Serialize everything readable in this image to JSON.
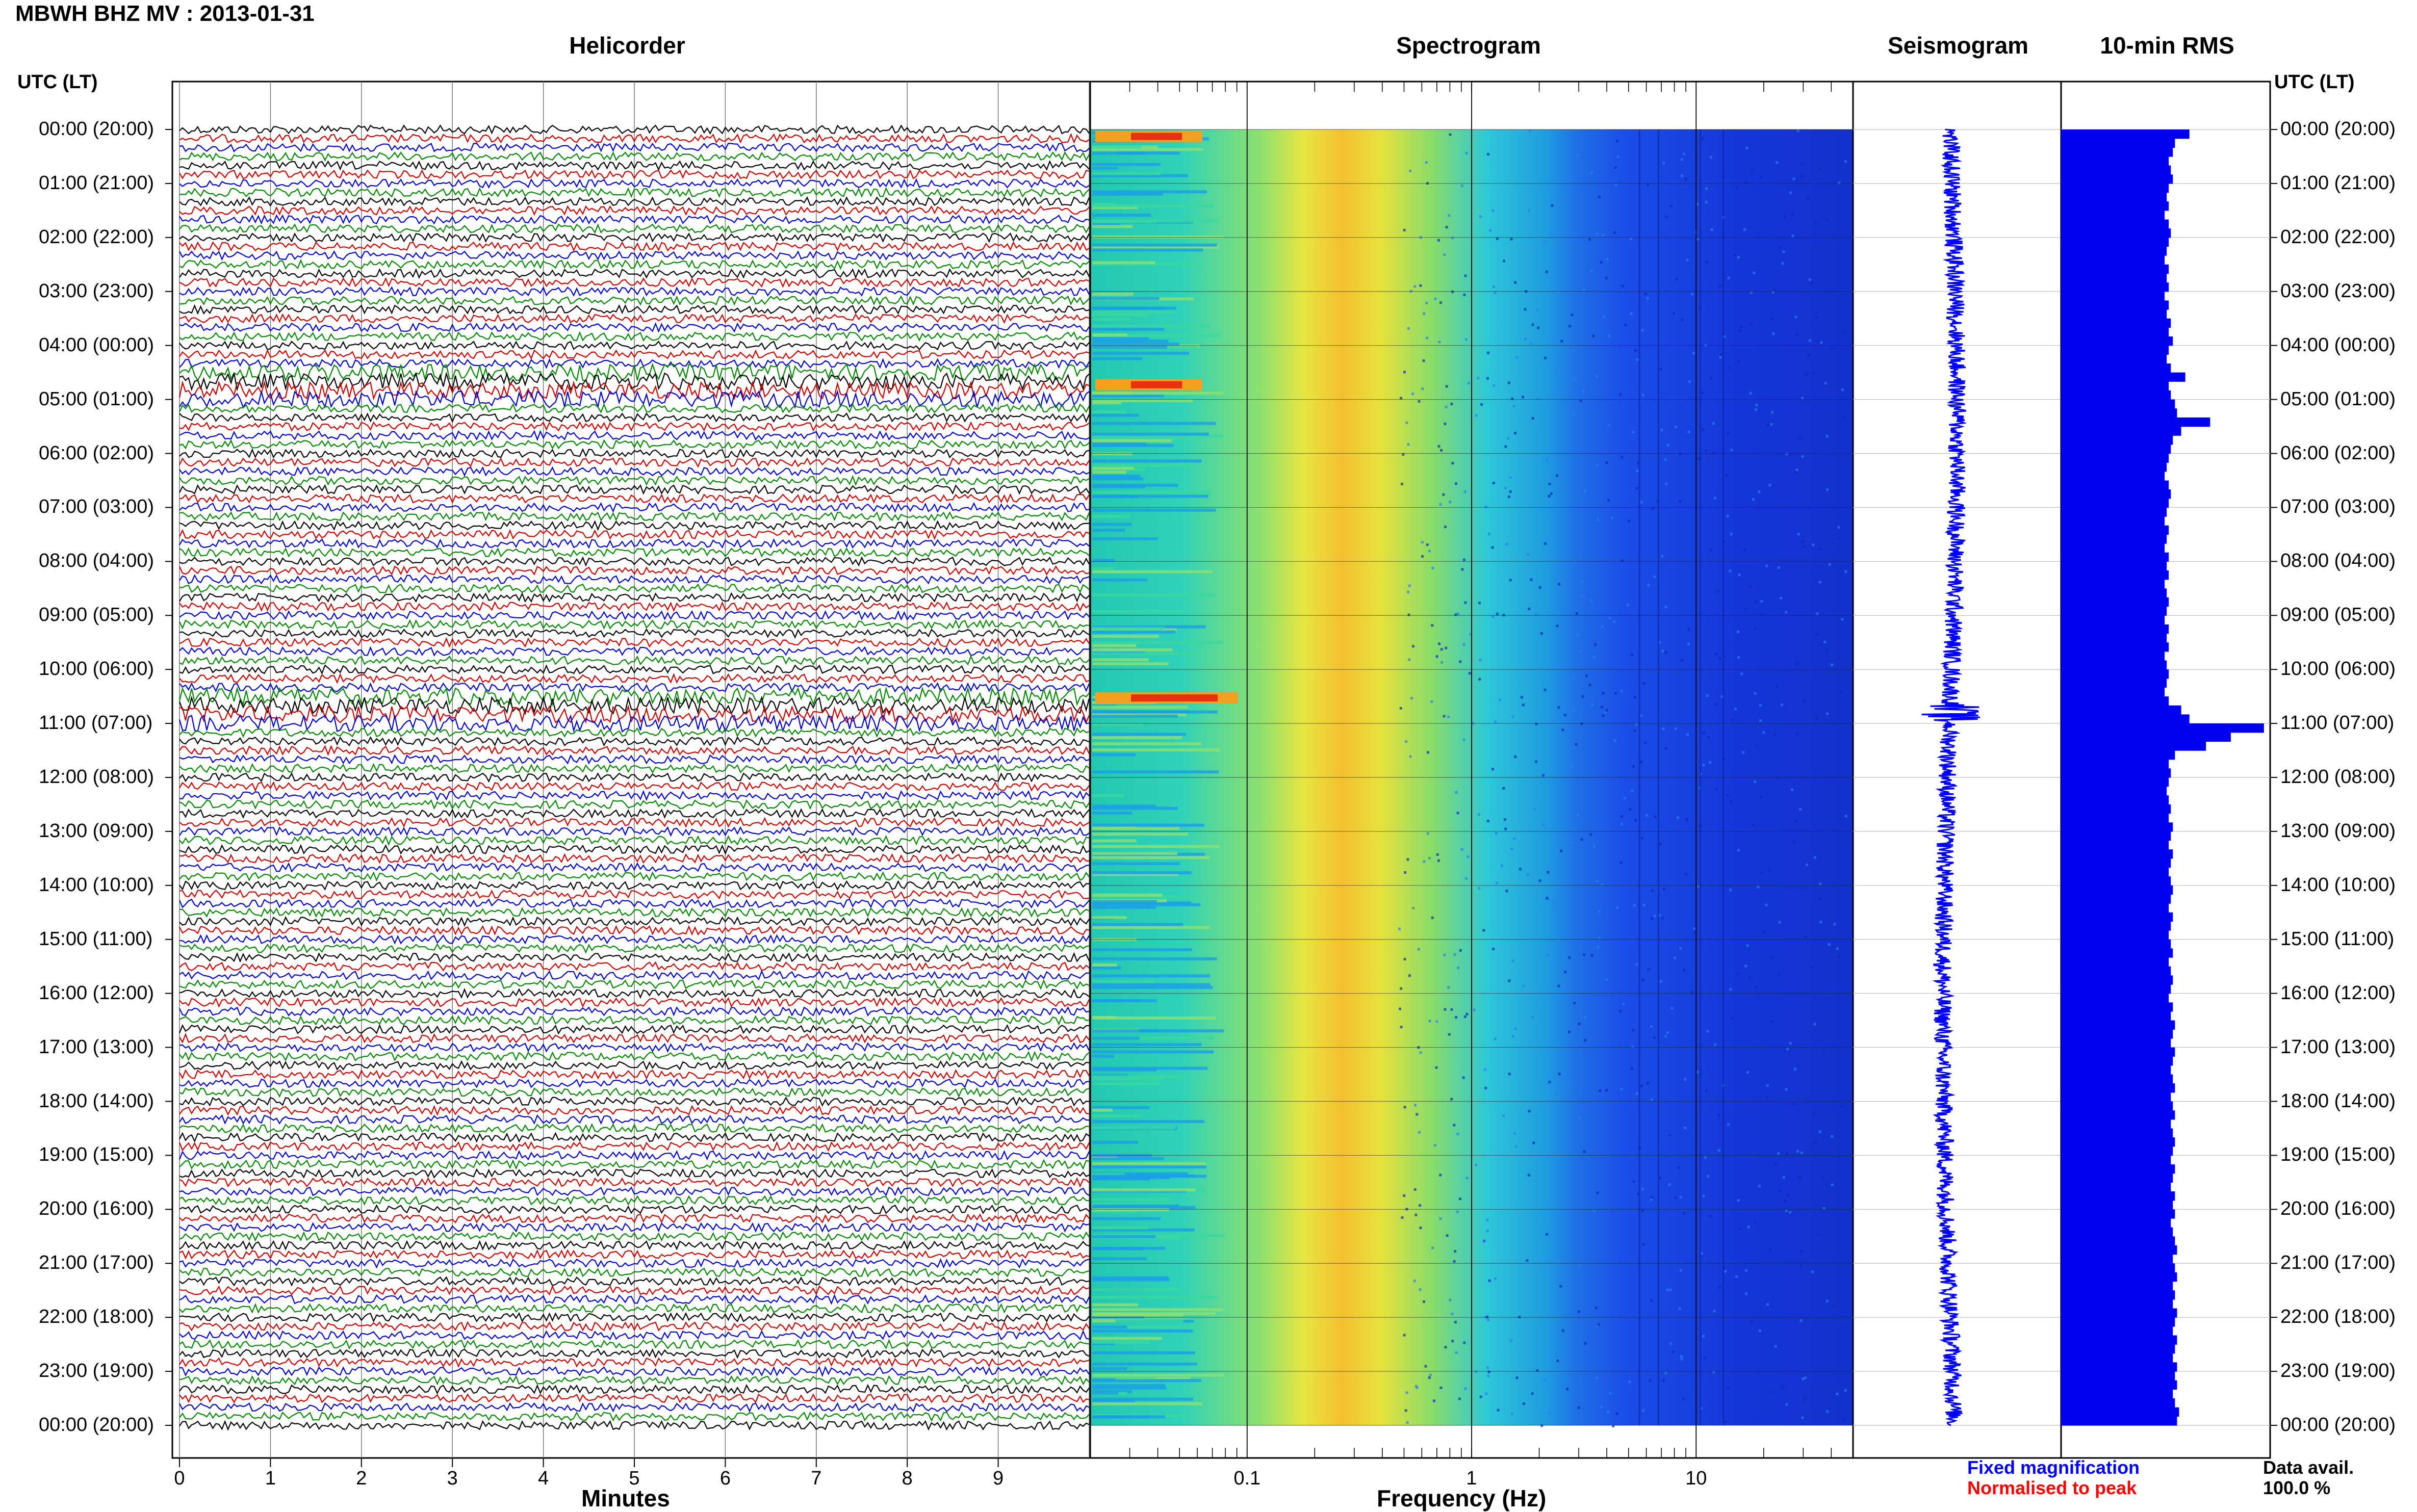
{
  "header": {
    "station": "MBWH BHZ MV : 2013-01-31"
  },
  "panels": {
    "helicorder": "Helicorder",
    "spectrogram": "Spectrogram",
    "seismogram": "Seismogram",
    "rms": "10-min RMS"
  },
  "axis_head": {
    "left": "UTC (LT)",
    "right": "UTC (LT)"
  },
  "time_labels": [
    "00:00 (20:00)",
    "01:00 (21:00)",
    "02:00 (22:00)",
    "03:00 (23:00)",
    "04:00 (00:00)",
    "05:00 (01:00)",
    "06:00 (02:00)",
    "07:00 (03:00)",
    "08:00 (04:00)",
    "09:00 (05:00)",
    "10:00 (06:00)",
    "11:00 (07:00)",
    "12:00 (08:00)",
    "13:00 (09:00)",
    "14:00 (10:00)",
    "15:00 (11:00)",
    "16:00 (12:00)",
    "17:00 (13:00)",
    "18:00 (14:00)",
    "19:00 (15:00)",
    "20:00 (16:00)",
    "21:00 (17:00)",
    "22:00 (18:00)",
    "23:00 (19:00)",
    "00:00 (20:00)"
  ],
  "xlabels": {
    "minutes": "Minutes",
    "frequency": "Frequency (Hz)"
  },
  "minute_ticks": [
    "0",
    "1",
    "2",
    "3",
    "4",
    "5",
    "6",
    "7",
    "8",
    "9"
  ],
  "freq_ticks": [
    "0.1",
    "1",
    "10"
  ],
  "legend": {
    "fixed": "Fixed magnification",
    "normalised": "Normalised to peak"
  },
  "data_avail": {
    "label": "Data avail.",
    "value": "100.0 %"
  },
  "colors": {
    "trace_cycle": [
      "#000000",
      "#cc0000",
      "#0000cc",
      "#008800"
    ],
    "rms_bar": "#0000ee",
    "seismogram": "#0000ff",
    "legend_fixed": "#0000ff",
    "legend_normalised": "#ff0000"
  },
  "chart_data": [
    {
      "type": "line",
      "title": "Helicorder",
      "xlabel": "Minutes",
      "ylabel": "UTC (LT)",
      "xlim": [
        0,
        10
      ],
      "ylim": [
        0,
        24
      ],
      "lines_per_hour": 6,
      "elevated_activity_hours": [
        4.8,
        10.8
      ]
    },
    {
      "type": "heatmap",
      "title": "Spectrogram",
      "xlabel": "Frequency (Hz)",
      "xscale": "log",
      "xlim": [
        0.02,
        50
      ],
      "ylim": [
        0,
        24
      ],
      "peak_band_hz": [
        0.15,
        0.4
      ],
      "strong_low_freq_events_hours": [
        0.1,
        4.7,
        10.5
      ]
    },
    {
      "type": "line",
      "title": "Seismogram",
      "ylim": [
        0,
        24
      ]
    },
    {
      "type": "bar",
      "title": "10-min RMS",
      "orientation": "horizontal",
      "bins_per_hour": 6,
      "ylim": [
        0,
        24
      ],
      "values": [
        0.62,
        0.55,
        0.54,
        0.52,
        0.53,
        0.54,
        0.52,
        0.51,
        0.52,
        0.5,
        0.52,
        0.53,
        0.52,
        0.51,
        0.5,
        0.52,
        0.51,
        0.52,
        0.5,
        0.52,
        0.51,
        0.53,
        0.52,
        0.54,
        0.52,
        0.51,
        0.53,
        0.6,
        0.52,
        0.53,
        0.55,
        0.56,
        0.72,
        0.58,
        0.54,
        0.53,
        0.52,
        0.51,
        0.5,
        0.52,
        0.53,
        0.52,
        0.51,
        0.5,
        0.52,
        0.51,
        0.5,
        0.52,
        0.51,
        0.52,
        0.5,
        0.51,
        0.52,
        0.51,
        0.5,
        0.52,
        0.51,
        0.52,
        0.5,
        0.51,
        0.52,
        0.51,
        0.5,
        0.52,
        0.58,
        0.62,
        0.98,
        0.82,
        0.7,
        0.55,
        0.52,
        0.53,
        0.52,
        0.51,
        0.52,
        0.53,
        0.52,
        0.54,
        0.53,
        0.52,
        0.54,
        0.53,
        0.52,
        0.53,
        0.54,
        0.53,
        0.52,
        0.54,
        0.53,
        0.52,
        0.53,
        0.54,
        0.52,
        0.53,
        0.54,
        0.53,
        0.52,
        0.54,
        0.53,
        0.55,
        0.54,
        0.53,
        0.55,
        0.54,
        0.53,
        0.54,
        0.55,
        0.53,
        0.54,
        0.55,
        0.53,
        0.54,
        0.55,
        0.54,
        0.53,
        0.55,
        0.54,
        0.53,
        0.55,
        0.54,
        0.55,
        0.53,
        0.54,
        0.55,
        0.56,
        0.54,
        0.55,
        0.56,
        0.54,
        0.55,
        0.54,
        0.56,
        0.55,
        0.54,
        0.56,
        0.55,
        0.54,
        0.56,
        0.55,
        0.56,
        0.54,
        0.55,
        0.57,
        0.56
      ]
    }
  ]
}
